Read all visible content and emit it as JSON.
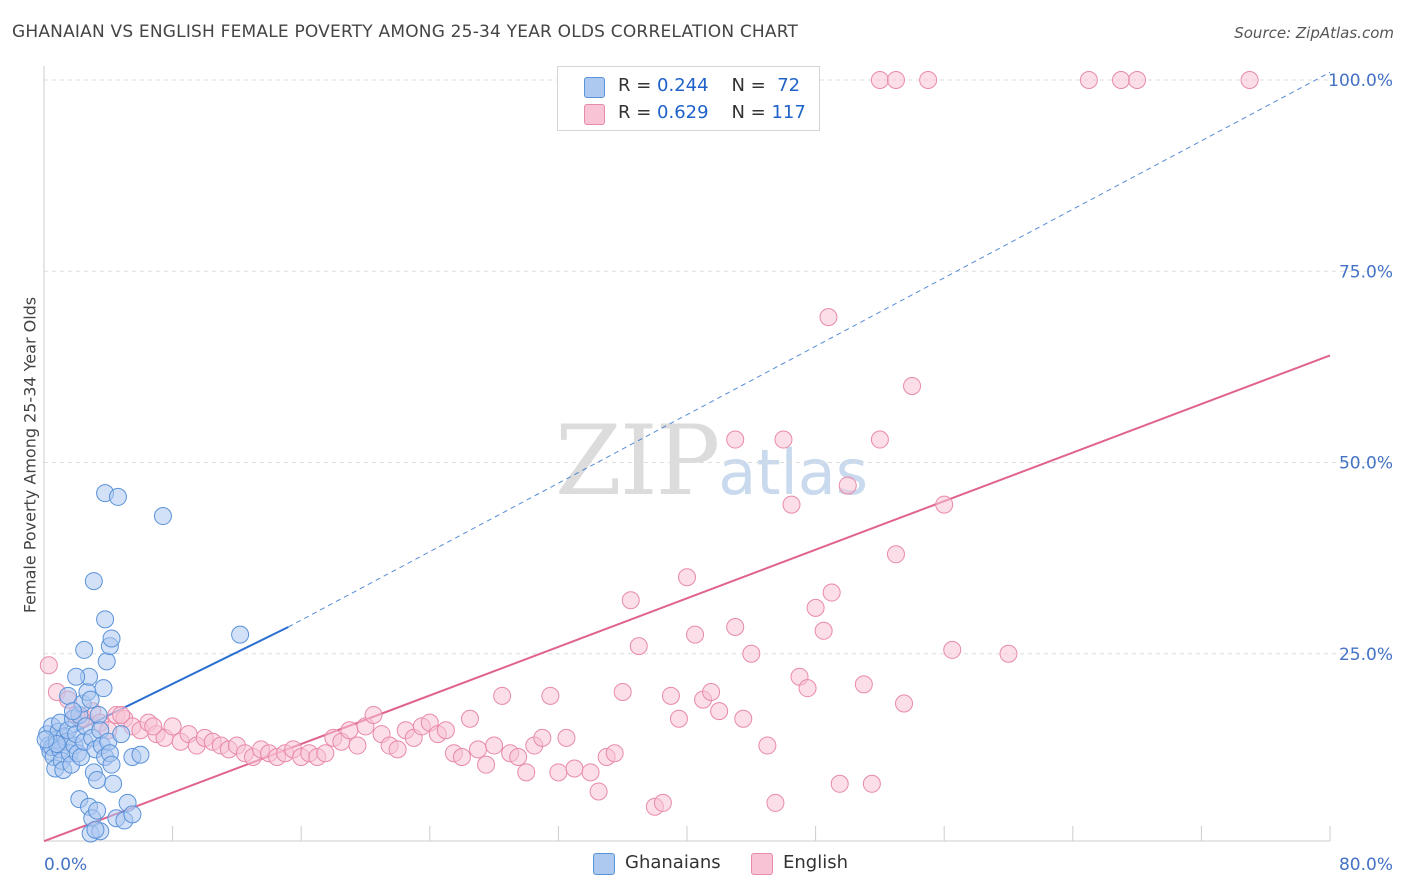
{
  "title": "GHANAIAN VS ENGLISH FEMALE POVERTY AMONG 25-34 YEAR OLDS CORRELATION CHART",
  "source": "Source: ZipAtlas.com",
  "watermark": {
    "zip": "ZIP",
    "atlas": "atlas"
  },
  "legend": {
    "ghanaian": {
      "r_label": "R =",
      "r_value": "0.244",
      "n_label": "N =",
      "n_value": "72"
    },
    "english": {
      "r_label": "R =",
      "r_value": "0.629",
      "n_label": "N =",
      "n_value": "117"
    }
  },
  "bottom_legend": {
    "ghanaian": "Ghanaians",
    "english": "English"
  },
  "colors": {
    "ghanaian_fill": "#adc9f0",
    "ghanaian_stroke": "#5b93d9",
    "ghanaian_line": "#2a6fd1",
    "english_fill": "#f7c3d5",
    "english_stroke": "#e88aa9",
    "english_line": "#e0628f",
    "tick": "#4472c4",
    "grid": "#dddddd"
  },
  "chart_data": {
    "type": "scatter",
    "title": "GHANAIAN VS ENGLISH FEMALE POVERTY AMONG 25-34 YEAR OLDS CORRELATION CHART",
    "xlabel": "",
    "ylabel": "Female Poverty Among 25-34 Year Olds",
    "xlim": [
      0,
      80
    ],
    "ylim": [
      0,
      100
    ],
    "x_tick_labels": [
      "0.0%",
      "80.0%"
    ],
    "y_tick_labels": [
      "25.0%",
      "50.0%",
      "75.0%",
      "100.0%"
    ],
    "y_tick_values": [
      25,
      50,
      75,
      100
    ],
    "grid": true,
    "series": [
      {
        "name": "Ghanaians",
        "r": 0.244,
        "n": 72,
        "trend": {
          "x": [
            0,
            15.2
          ],
          "y": [
            12.8,
            28.5
          ]
        },
        "trend_extension": {
          "x": [
            15.2,
            80
          ],
          "y": [
            28.5,
            101
          ]
        },
        "points": [
          [
            0.2,
            14.5
          ],
          [
            0.3,
            13
          ],
          [
            0.4,
            12.2
          ],
          [
            0.5,
            15.5
          ],
          [
            0.5,
            12.8
          ],
          [
            0.6,
            11.5
          ],
          [
            0.7,
            10
          ],
          [
            0.8,
            13.8
          ],
          [
            0.9,
            14.8
          ],
          [
            1,
            12.5
          ],
          [
            1,
            16
          ],
          [
            1.1,
            11
          ],
          [
            1.2,
            9.8
          ],
          [
            1.3,
            14.2
          ],
          [
            1.4,
            13.5
          ],
          [
            1.5,
            15
          ],
          [
            1.6,
            12
          ],
          [
            1.7,
            10.5
          ],
          [
            1.8,
            16.5
          ],
          [
            1.9,
            13
          ],
          [
            2,
            14.5
          ],
          [
            2.1,
            12
          ],
          [
            2.2,
            17
          ],
          [
            2.3,
            11.5
          ],
          [
            2.4,
            18.5
          ],
          [
            2.5,
            13.5
          ],
          [
            2.6,
            15.5
          ],
          [
            2.7,
            20
          ],
          [
            2.8,
            22
          ],
          [
            2.9,
            19
          ],
          [
            3,
            14
          ],
          [
            3.1,
            9.5
          ],
          [
            3.2,
            12.5
          ],
          [
            3.3,
            8.5
          ],
          [
            3.4,
            17
          ],
          [
            3.5,
            15
          ],
          [
            3.6,
            13
          ],
          [
            3.7,
            20.5
          ],
          [
            3.8,
            11.5
          ],
          [
            3.9,
            24
          ],
          [
            4,
            13.5
          ],
          [
            4.1,
            12
          ],
          [
            4.2,
            10.5
          ],
          [
            4.3,
            8
          ],
          [
            2.2,
            6
          ],
          [
            2.8,
            5
          ],
          [
            3,
            3.5
          ],
          [
            2.9,
            1.5
          ],
          [
            3.3,
            4.5
          ],
          [
            3.5,
            1.8
          ],
          [
            3.2,
            2
          ],
          [
            4.5,
            3.5
          ],
          [
            5,
            3.2
          ],
          [
            5.2,
            5.5
          ],
          [
            5.5,
            4
          ],
          [
            3.1,
            34.5
          ],
          [
            3.8,
            29.5
          ],
          [
            4.1,
            26
          ],
          [
            2.5,
            25.5
          ],
          [
            4.2,
            27
          ],
          [
            3.8,
            46
          ],
          [
            4.6,
            45.5
          ],
          [
            7.4,
            43
          ],
          [
            12.2,
            27.5
          ],
          [
            5.5,
            11.5
          ],
          [
            6,
            11.8
          ],
          [
            4.8,
            14.5
          ],
          [
            1.5,
            19.5
          ],
          [
            2,
            22
          ],
          [
            0.8,
            13.2
          ],
          [
            0.1,
            13.8
          ],
          [
            1.8,
            17.5
          ]
        ]
      },
      {
        "name": "English",
        "r": 0.629,
        "n": 117,
        "trend": {
          "x": [
            0,
            80
          ],
          "y": [
            0.5,
            64
          ]
        },
        "points": [
          [
            0.3,
            23.5
          ],
          [
            0.8,
            20
          ],
          [
            1.5,
            19
          ],
          [
            2,
            17
          ],
          [
            2.5,
            16.5
          ],
          [
            3,
            17.5
          ],
          [
            3.5,
            16
          ],
          [
            4,
            15
          ],
          [
            4.5,
            17
          ],
          [
            5,
            16.5
          ],
          [
            5.5,
            15.5
          ],
          [
            6,
            15
          ],
          [
            6.5,
            16
          ],
          [
            7,
            14.5
          ],
          [
            7.5,
            14
          ],
          [
            8,
            15.5
          ],
          [
            8.5,
            13.5
          ],
          [
            9,
            14.5
          ],
          [
            9.5,
            13
          ],
          [
            10,
            14
          ],
          [
            10.5,
            13.5
          ],
          [
            11,
            13
          ],
          [
            11.5,
            12.5
          ],
          [
            12,
            13
          ],
          [
            12.5,
            12
          ],
          [
            13,
            11.5
          ],
          [
            13.5,
            12.5
          ],
          [
            14,
            12
          ],
          [
            14.5,
            11.5
          ],
          [
            15,
            12
          ],
          [
            15.5,
            12.5
          ],
          [
            16,
            11.5
          ],
          [
            16.5,
            12
          ],
          [
            17,
            11.5
          ],
          [
            17.5,
            12
          ],
          [
            18,
            14
          ],
          [
            18.5,
            13.5
          ],
          [
            19,
            15
          ],
          [
            19.5,
            13
          ],
          [
            20,
            15.5
          ],
          [
            20.5,
            17
          ],
          [
            21,
            14.5
          ],
          [
            21.5,
            13
          ],
          [
            22,
            12.5
          ],
          [
            22.5,
            15
          ],
          [
            23,
            14
          ],
          [
            23.5,
            15.5
          ],
          [
            24,
            16
          ],
          [
            24.5,
            14.5
          ],
          [
            25,
            15
          ],
          [
            25.5,
            12
          ],
          [
            26,
            11.5
          ],
          [
            26.5,
            16.5
          ],
          [
            27,
            12.5
          ],
          [
            27.5,
            10.5
          ],
          [
            28,
            13
          ],
          [
            28.5,
            19.5
          ],
          [
            29,
            12
          ],
          [
            29.5,
            11.5
          ],
          [
            30,
            9.5
          ],
          [
            30.5,
            13
          ],
          [
            31,
            14
          ],
          [
            31.5,
            19.5
          ],
          [
            32,
            9.5
          ],
          [
            32.5,
            14
          ],
          [
            33,
            10
          ],
          [
            34,
            9.5
          ],
          [
            34.5,
            7
          ],
          [
            35,
            11.5
          ],
          [
            35.5,
            12
          ],
          [
            36,
            20
          ],
          [
            36.5,
            32
          ],
          [
            37,
            26
          ],
          [
            38,
            5
          ],
          [
            38.5,
            5.5
          ],
          [
            39,
            19.5
          ],
          [
            39.5,
            16.5
          ],
          [
            40,
            35
          ],
          [
            40.5,
            27.5
          ],
          [
            41,
            19
          ],
          [
            41.5,
            20
          ],
          [
            42,
            17.5
          ],
          [
            43,
            28.5
          ],
          [
            43.5,
            16.5
          ],
          [
            44,
            25
          ],
          [
            45,
            13
          ],
          [
            45.5,
            5.5
          ],
          [
            46,
            53
          ],
          [
            46.5,
            44.5
          ],
          [
            47,
            22
          ],
          [
            47.5,
            20.5
          ],
          [
            48,
            31
          ],
          [
            48.5,
            28
          ],
          [
            49,
            33
          ],
          [
            49.5,
            8
          ],
          [
            50,
            47
          ],
          [
            51,
            21
          ],
          [
            51.5,
            8
          ],
          [
            52,
            53
          ],
          [
            53,
            38
          ],
          [
            53.5,
            18.5
          ],
          [
            54,
            60
          ],
          [
            56,
            44.5
          ],
          [
            56.5,
            25.5
          ],
          [
            60,
            25
          ],
          [
            43,
            53
          ],
          [
            48.8,
            69
          ],
          [
            52,
            100
          ],
          [
            53,
            100
          ],
          [
            55,
            100
          ],
          [
            65,
            100
          ],
          [
            67,
            100
          ],
          [
            68,
            100
          ],
          [
            75,
            100
          ],
          [
            2.3,
            16.5
          ],
          [
            4.8,
            17
          ],
          [
            6.8,
            15.5
          ]
        ]
      }
    ]
  }
}
